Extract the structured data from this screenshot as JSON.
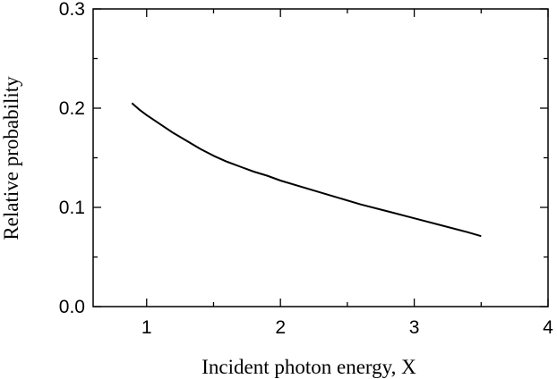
{
  "chart_data": {
    "type": "line",
    "title": "",
    "xlabel": "Incident photon energy, X",
    "ylabel": "Relative probability",
    "xlim": [
      0.6,
      4.0
    ],
    "ylim": [
      0.0,
      0.3
    ],
    "x_ticks": [
      1,
      2,
      3,
      4
    ],
    "x_tick_labels": [
      "1",
      "2",
      "3",
      "4"
    ],
    "y_ticks": [
      0.0,
      0.1,
      0.2,
      0.3
    ],
    "y_tick_labels": [
      "0.0",
      "0.1",
      "0.2",
      "0.3"
    ],
    "grid": false,
    "series": [
      {
        "color": "#000000",
        "x": [
          0.89,
          0.95,
          1.0,
          1.1,
          1.2,
          1.3,
          1.4,
          1.5,
          1.6,
          1.7,
          1.8,
          1.9,
          2.0,
          2.2,
          2.4,
          2.6,
          2.8,
          3.0,
          3.2,
          3.4,
          3.5
        ],
        "y": [
          0.205,
          0.198,
          0.193,
          0.184,
          0.175,
          0.167,
          0.159,
          0.152,
          0.146,
          0.141,
          0.136,
          0.132,
          0.127,
          0.119,
          0.111,
          0.103,
          0.096,
          0.089,
          0.082,
          0.075,
          0.071
        ]
      }
    ]
  }
}
